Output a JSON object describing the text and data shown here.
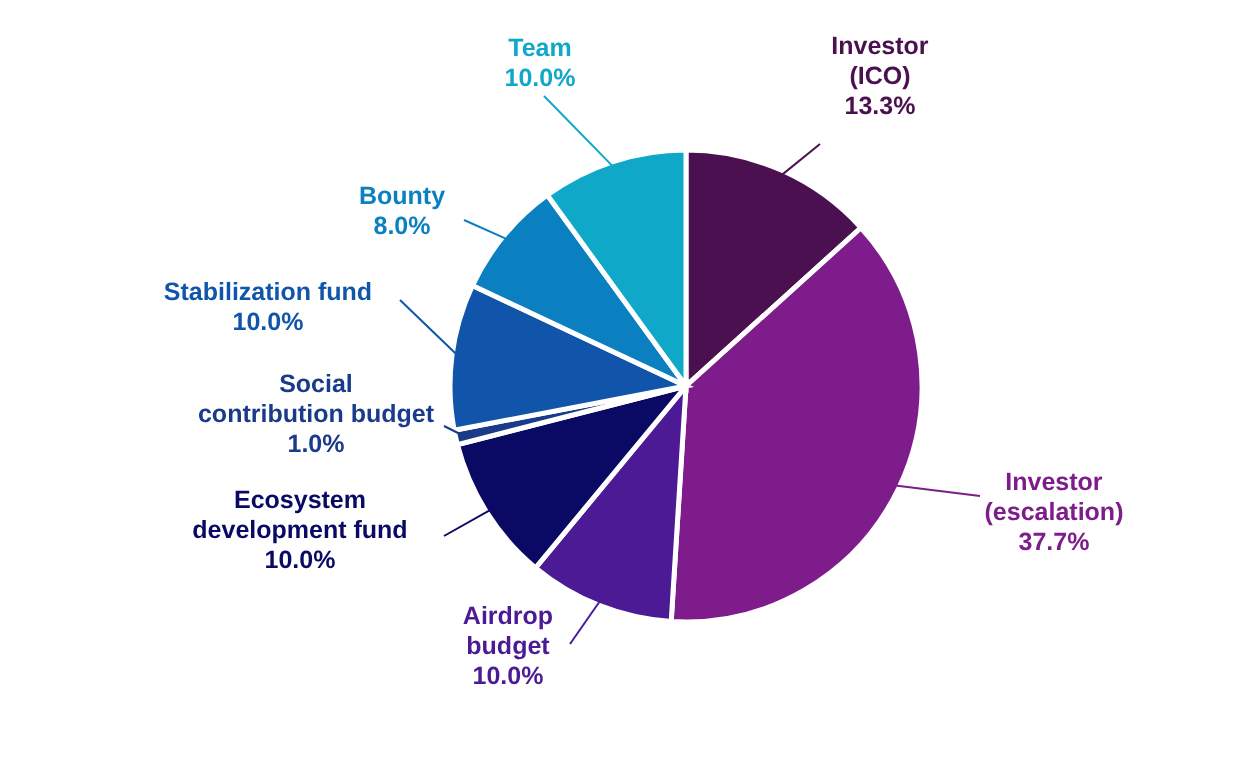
{
  "chart_data": {
    "type": "pie",
    "categories": [
      "Investor (ICO)",
      "Investor (escalation)",
      "Airdrop budget",
      "Ecosystem development fund",
      "Social contribution budget",
      "Stabilization fund",
      "Bounty",
      "Team"
    ],
    "values": [
      13.3,
      37.7,
      10.0,
      10.0,
      1.0,
      10.0,
      8.0,
      10.0
    ],
    "colors": [
      "#4a1050",
      "#7e1c8c",
      "#4b1a94",
      "#0a0a64",
      "#1a3a8a",
      "#1155aa",
      "#0a80c0",
      "#10a8c8"
    ],
    "value_labels": [
      "13.3%",
      "37.7%",
      "10.0%",
      "10.0%",
      "1.0%",
      "10.0%",
      "8.0%",
      "10.0%"
    ]
  }
}
